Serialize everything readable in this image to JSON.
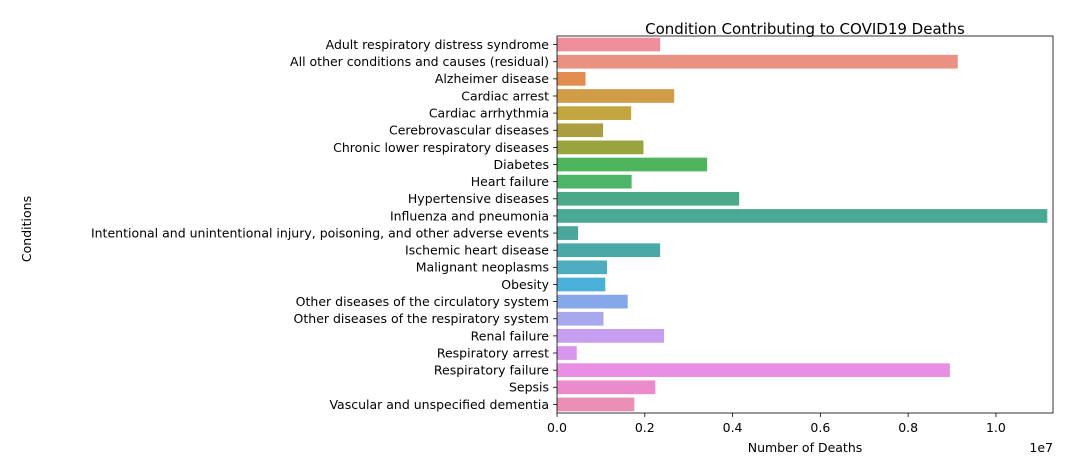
{
  "chart_data": {
    "type": "bar",
    "orientation": "horizontal",
    "title": "Condition Contributing to COVID19 Deaths",
    "xlabel": "Number of Deaths",
    "ylabel": "Conditions",
    "x_scale_label": "1e7",
    "xlim": [
      0,
      11300000
    ],
    "xticks": [
      0,
      2000000,
      4000000,
      6000000,
      8000000,
      10000000
    ],
    "xtick_labels": [
      "0.0",
      "0.2",
      "0.4",
      "0.6",
      "0.8",
      "1.0"
    ],
    "grid": false,
    "legend": "none",
    "categories": [
      "Adult respiratory distress syndrome",
      "All other conditions and causes (residual)",
      "Alzheimer disease",
      "Cardiac arrest",
      "Cardiac arrhythmia",
      "Cerebrovascular diseases",
      "Chronic lower respiratory diseases",
      "Diabetes",
      "Heart failure",
      "Hypertensive diseases",
      "Influenza and pneumonia",
      "Intentional and unintentional injury, poisoning, and other adverse events",
      "Ischemic heart disease",
      "Malignant neoplasms",
      "Obesity",
      "Other diseases of the circulatory system",
      "Other diseases of the respiratory system",
      "Renal failure",
      "Respiratory arrest",
      "Respiratory failure",
      "Sepsis",
      "Vascular and unspecified dementia"
    ],
    "values": [
      2350000,
      9130000,
      650000,
      2670000,
      1690000,
      1050000,
      1970000,
      3420000,
      1700000,
      4150000,
      11170000,
      480000,
      2350000,
      1140000,
      1100000,
      1610000,
      1060000,
      2440000,
      450000,
      8950000,
      2240000,
      1760000
    ],
    "colors": [
      "#f08f9c",
      "#ea9282",
      "#e08d4f",
      "#d19c47",
      "#c3a540",
      "#ab9e40",
      "#9aa43f",
      "#4fb55c",
      "#4db569",
      "#4ba98a",
      "#49a994",
      "#4aa69c",
      "#4aa8a7",
      "#4eaec0",
      "#4ab0d7",
      "#84a8ea",
      "#a9a8ee",
      "#c59ef0",
      "#d896ec",
      "#e88ee3",
      "#ea8ccb",
      "#eb8fb6"
    ]
  }
}
